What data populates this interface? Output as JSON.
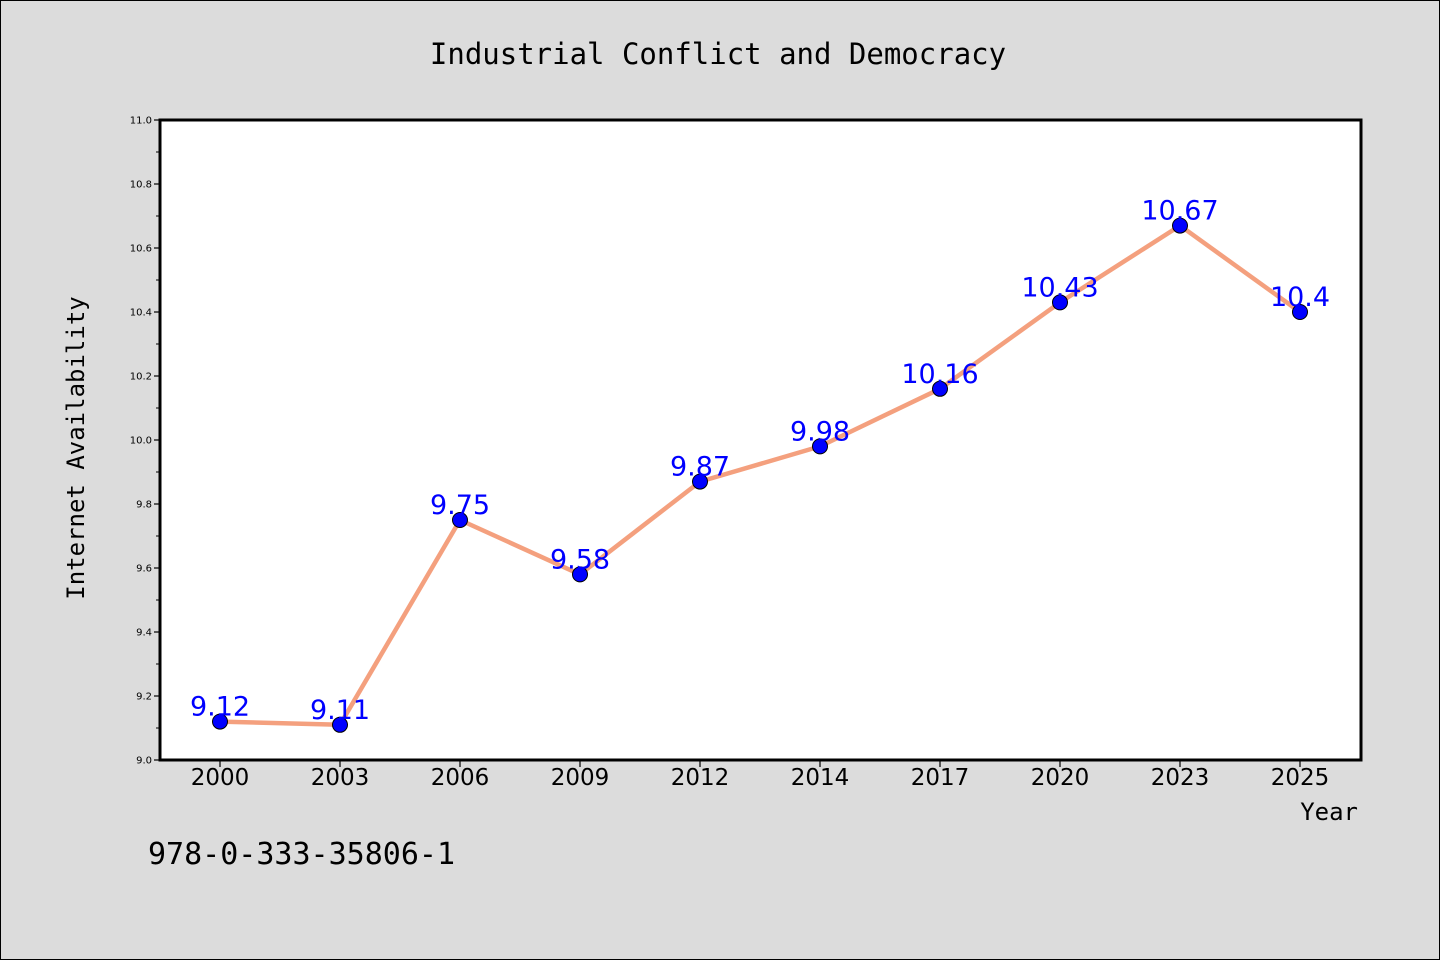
{
  "chart_data": {
    "type": "line",
    "title": "Industrial Conflict and Democracy",
    "xlabel": "Year",
    "ylabel": "Internet Availability",
    "categories": [
      "2000",
      "2003",
      "2006",
      "2009",
      "2012",
      "2014",
      "2017",
      "2020",
      "2023",
      "2025"
    ],
    "series": [
      {
        "values": [
          9.12,
          9.11,
          9.75,
          9.58,
          9.87,
          9.98,
          10.16,
          10.43,
          10.67,
          10.4
        ],
        "labels": [
          "9.12",
          "9.11",
          "9.75",
          "9.58",
          "9.87",
          "9.98",
          "10.16",
          "10.43",
          "10.67",
          "10.4"
        ]
      }
    ],
    "ylim": [
      9.0,
      11.0
    ],
    "yticks": [
      "9.0",
      "9.2",
      "9.4",
      "9.6",
      "9.8",
      "10.0",
      "10.2",
      "10.4",
      "10.6",
      "10.8",
      "11.0"
    ],
    "grid": false,
    "line_color": "#f4a07e",
    "marker_color": "#0000ff",
    "label_color": "#0000ff"
  },
  "footer_code": "978-0-333-35806-1"
}
